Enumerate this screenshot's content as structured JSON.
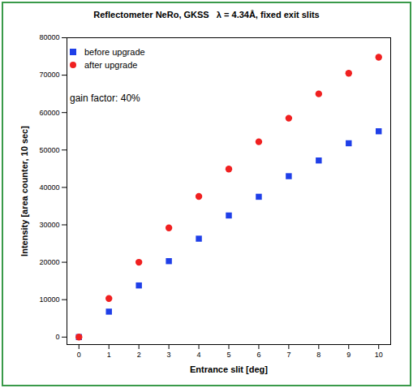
{
  "chart_data": {
    "type": "scatter",
    "title": "Reflectometer NeRo, GKSS   λ = 4.34Å, fixed exit slits",
    "x_label": "Entrance slit [deg]",
    "y_label": "Intensity [area counter, 10 sec]",
    "annotation": "gain factor: 40%",
    "x": [
      0,
      1,
      2,
      3,
      4,
      5,
      6,
      7,
      8,
      9,
      10
    ],
    "series": [
      {
        "name": "before upgrade",
        "color": "#1f3fe8",
        "marker": "square",
        "values": [
          0,
          6800,
          13800,
          20300,
          26300,
          32500,
          37500,
          43000,
          47200,
          51800,
          55000
        ]
      },
      {
        "name": "after upgrade",
        "color": "#f02020",
        "marker": "circle",
        "values": [
          0,
          10300,
          20000,
          29200,
          37600,
          44900,
          52200,
          58500,
          65000,
          70500,
          74800
        ]
      }
    ],
    "xlim": [
      -0.4,
      10.4
    ],
    "xticks": [
      0,
      1,
      2,
      3,
      4,
      5,
      6,
      7,
      8,
      9,
      10
    ],
    "ylim": [
      -2000,
      80000
    ],
    "yticks": [
      0,
      10000,
      20000,
      30000,
      40000,
      50000,
      60000,
      70000,
      80000
    ],
    "legend": "top-left",
    "grid": false
  }
}
